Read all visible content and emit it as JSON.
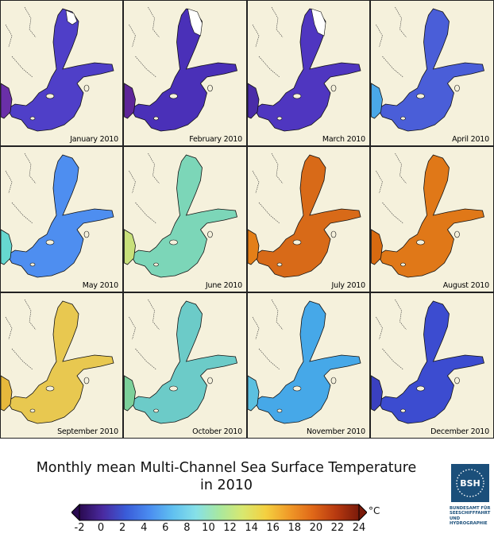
{
  "title_line1": "Monthly mean Multi-Channel Sea Surface Temperature",
  "title_line2": "in 2010",
  "panels": [
    {
      "label": "January 2010",
      "color": "#4f3fc8",
      "west": "#6a2fa8"
    },
    {
      "label": "February 2010",
      "color": "#4a30b8",
      "west": "#5e2598"
    },
    {
      "label": "March 2010",
      "color": "#4f36c0",
      "west": "#4a2ca8"
    },
    {
      "label": "April 2010",
      "color": "#4a5ed8",
      "west": "#4aa8e8"
    },
    {
      "label": "May 2010",
      "color": "#4e8ef0",
      "west": "#66d8d0"
    },
    {
      "label": "June 2010",
      "color": "#7cd6b8",
      "west": "#c8e07a"
    },
    {
      "label": "July 2010",
      "color": "#d86a18",
      "west": "#e47f18"
    },
    {
      "label": "August 2010",
      "color": "#e07818",
      "west": "#d86a10"
    },
    {
      "label": "September 2010",
      "color": "#e8c850",
      "west": "#e6b83c"
    },
    {
      "label": "October 2010",
      "color": "#6ccbc8",
      "west": "#7cd09a"
    },
    {
      "label": "November 2010",
      "color": "#46a8e8",
      "west": "#5cc0e0"
    },
    {
      "label": "December 2010",
      "color": "#3c4cd0",
      "west": "#3a40c0"
    }
  ],
  "colorbar": {
    "ticks": [
      "-2",
      "0",
      "2",
      "4",
      "6",
      "8",
      "10",
      "12",
      "14",
      "16",
      "18",
      "20",
      "22",
      "24"
    ],
    "unit": "°C",
    "min": -2,
    "max": 24,
    "colors": [
      "#2a0a50",
      "#4a2aa0",
      "#3a5cd8",
      "#4a8cf0",
      "#60c0f0",
      "#86e0e8",
      "#a8e8a0",
      "#d8e870",
      "#f4d040",
      "#f09a28",
      "#e06818",
      "#b83a10",
      "#7a1a0a"
    ]
  },
  "logo": {
    "badge": "BSH",
    "lines": [
      "BUNDESAMT FÜR",
      "SEESCHIFFFAHRT",
      "UND",
      "HYDROGRAPHIE"
    ]
  }
}
